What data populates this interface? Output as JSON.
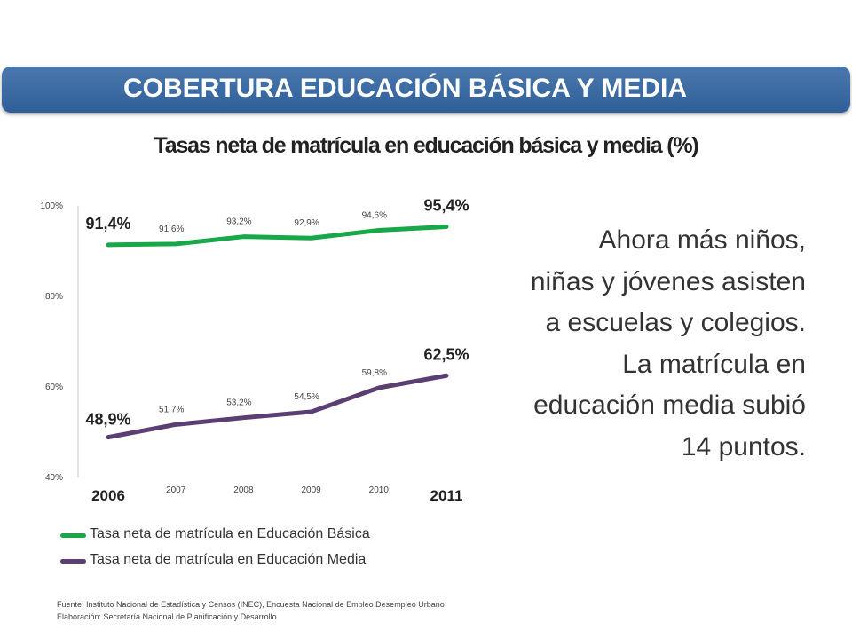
{
  "header": {
    "title": "COBERTURA EDUCACIÓN BÁSICA Y MEDIA"
  },
  "chart_data": {
    "type": "line",
    "title": "Tasas neta de matrícula en educación básica y media (%)",
    "x": [
      "2006",
      "2007",
      "2008",
      "2009",
      "2010",
      "2011"
    ],
    "yticks": [
      "100%",
      "80%",
      "60%",
      "40%"
    ],
    "ylim": [
      40,
      100
    ],
    "series": [
      {
        "name": "Tasa neta de matrícula en Educación Básica",
        "color": "#18a84a",
        "values": [
          91.4,
          91.6,
          93.2,
          92.9,
          94.6,
          95.4
        ],
        "labels": [
          "91,4%",
          "91,6%",
          "93,2%",
          "92,9%",
          "94,6%",
          "95,4%"
        ]
      },
      {
        "name": "Tasa neta de matrícula en Educación Media",
        "color": "#5b3f73",
        "values": [
          48.9,
          51.7,
          53.2,
          54.5,
          59.8,
          62.5
        ],
        "labels": [
          "48,9%",
          "51,7%",
          "53,2%",
          "54,5%",
          "59,8%",
          "62,5%"
        ]
      }
    ],
    "grid": false,
    "legend_position": "bottom"
  },
  "side_text": "Ahora más niños, niñas y jóvenes asisten a escuelas y colegios.  La matrícula en educación media subió 14 puntos.",
  "source": {
    "line1": "Fuente: Instituto Nacional de Estadística y Censos  (INEC), Encuesta Nacional  de Empleo Desempleo Urbano",
    "line2": "Elaboración: Secretaría Nacional de Planificación y Desarrollo"
  }
}
